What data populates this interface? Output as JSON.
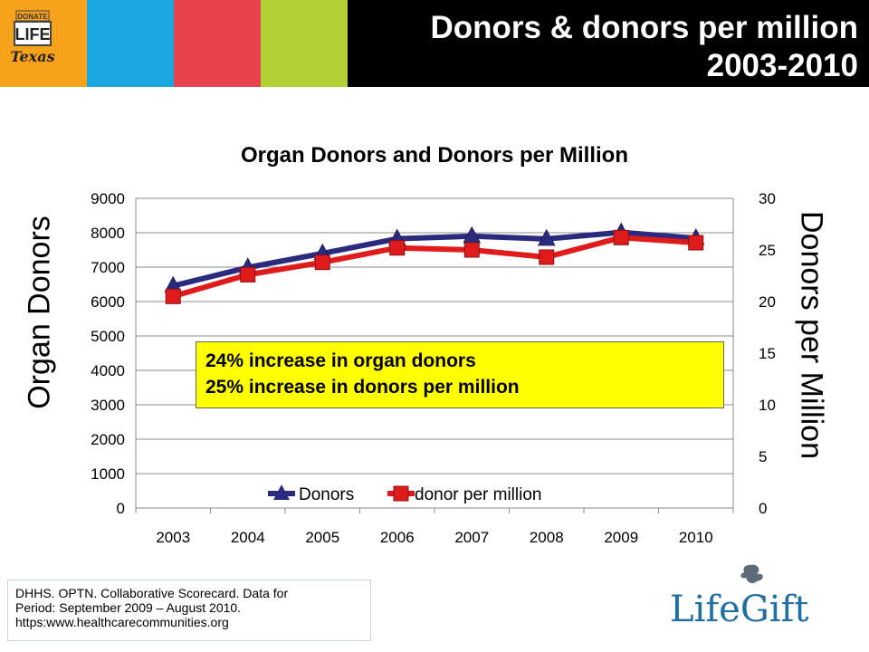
{
  "header": {
    "title_line1": "Donors & donors per million",
    "title_line2": "2003-2010",
    "logo_lines": [
      "DONATE",
      "LIFE",
      "Texas"
    ],
    "stripe_colors": [
      "#f7a21b",
      "#1aa7e0",
      "#e8414d",
      "#b4cf37"
    ]
  },
  "chart_data": {
    "type": "line",
    "title": "Organ Donors and Donors per Million",
    "categories": [
      "2003",
      "2004",
      "2005",
      "2006",
      "2007",
      "2008",
      "2009",
      "2010"
    ],
    "y_left": {
      "label": "Organ Donors",
      "ylim": [
        0,
        9000
      ],
      "ticks": [
        "0",
        "1000",
        "2000",
        "3000",
        "4000",
        "5000",
        "6000",
        "7000",
        "8000",
        "9000"
      ]
    },
    "y_right": {
      "label": "Donors per Million",
      "ylim": [
        0,
        30
      ],
      "ticks": [
        "0",
        "5",
        "10",
        "15",
        "20",
        "25",
        "30"
      ]
    },
    "grid": true,
    "legend_position": "bottom-center",
    "series": [
      {
        "name": "Donors",
        "axis": "left",
        "color": "#2a2b7f",
        "marker": "triangle",
        "values": [
          6455,
          6990,
          7400,
          7825,
          7900,
          7820,
          8010,
          7840
        ]
      },
      {
        "name": "donor per million",
        "axis": "right",
        "color": "#e01b1b",
        "marker": "square",
        "values": [
          20.5,
          22.6,
          23.8,
          25.2,
          25.0,
          24.3,
          26.2,
          25.7
        ]
      }
    ]
  },
  "callout": {
    "line1": "24% increase in organ donors",
    "line2": "25% increase in donors per million"
  },
  "source": {
    "line1": "DHHS.  OPTN.  Collaborative Scorecard.  Data for",
    "line2": "Period:  September 2009 – August 2010.",
    "line3": "https:www.healthcarecommunities.org"
  },
  "footer_logo": {
    "text": "LifeGift",
    "color": "#1f6fa3"
  }
}
